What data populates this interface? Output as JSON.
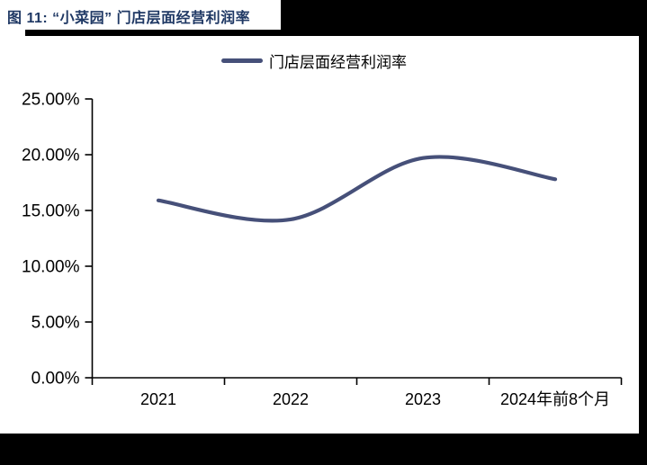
{
  "figure": {
    "title": "图 11: “小菜园” 门店层面经营利润率"
  },
  "colors": {
    "title_text": "#1F3864",
    "series_line": "#465079",
    "axis": "#000000",
    "decor_band": "#000000"
  },
  "chart_data": {
    "type": "line",
    "smooth": true,
    "title": "",
    "xlabel": "",
    "ylabel": "",
    "legend": [
      "门店层面经营利润率"
    ],
    "legend_position": "top-center",
    "grid": false,
    "categories": [
      "2021",
      "2022",
      "2023",
      "2024年前8个月"
    ],
    "series": [
      {
        "name": "门店层面经营利润率",
        "values": [
          15.9,
          14.2,
          19.7,
          17.8
        ]
      }
    ],
    "unit": "%",
    "ylim": [
      0,
      25
    ],
    "yticks": [
      0,
      5,
      10,
      15,
      20,
      25
    ],
    "ytick_labels": [
      "0.00%",
      "5.00%",
      "10.00%",
      "15.00%",
      "20.00%",
      "25.00%"
    ]
  }
}
